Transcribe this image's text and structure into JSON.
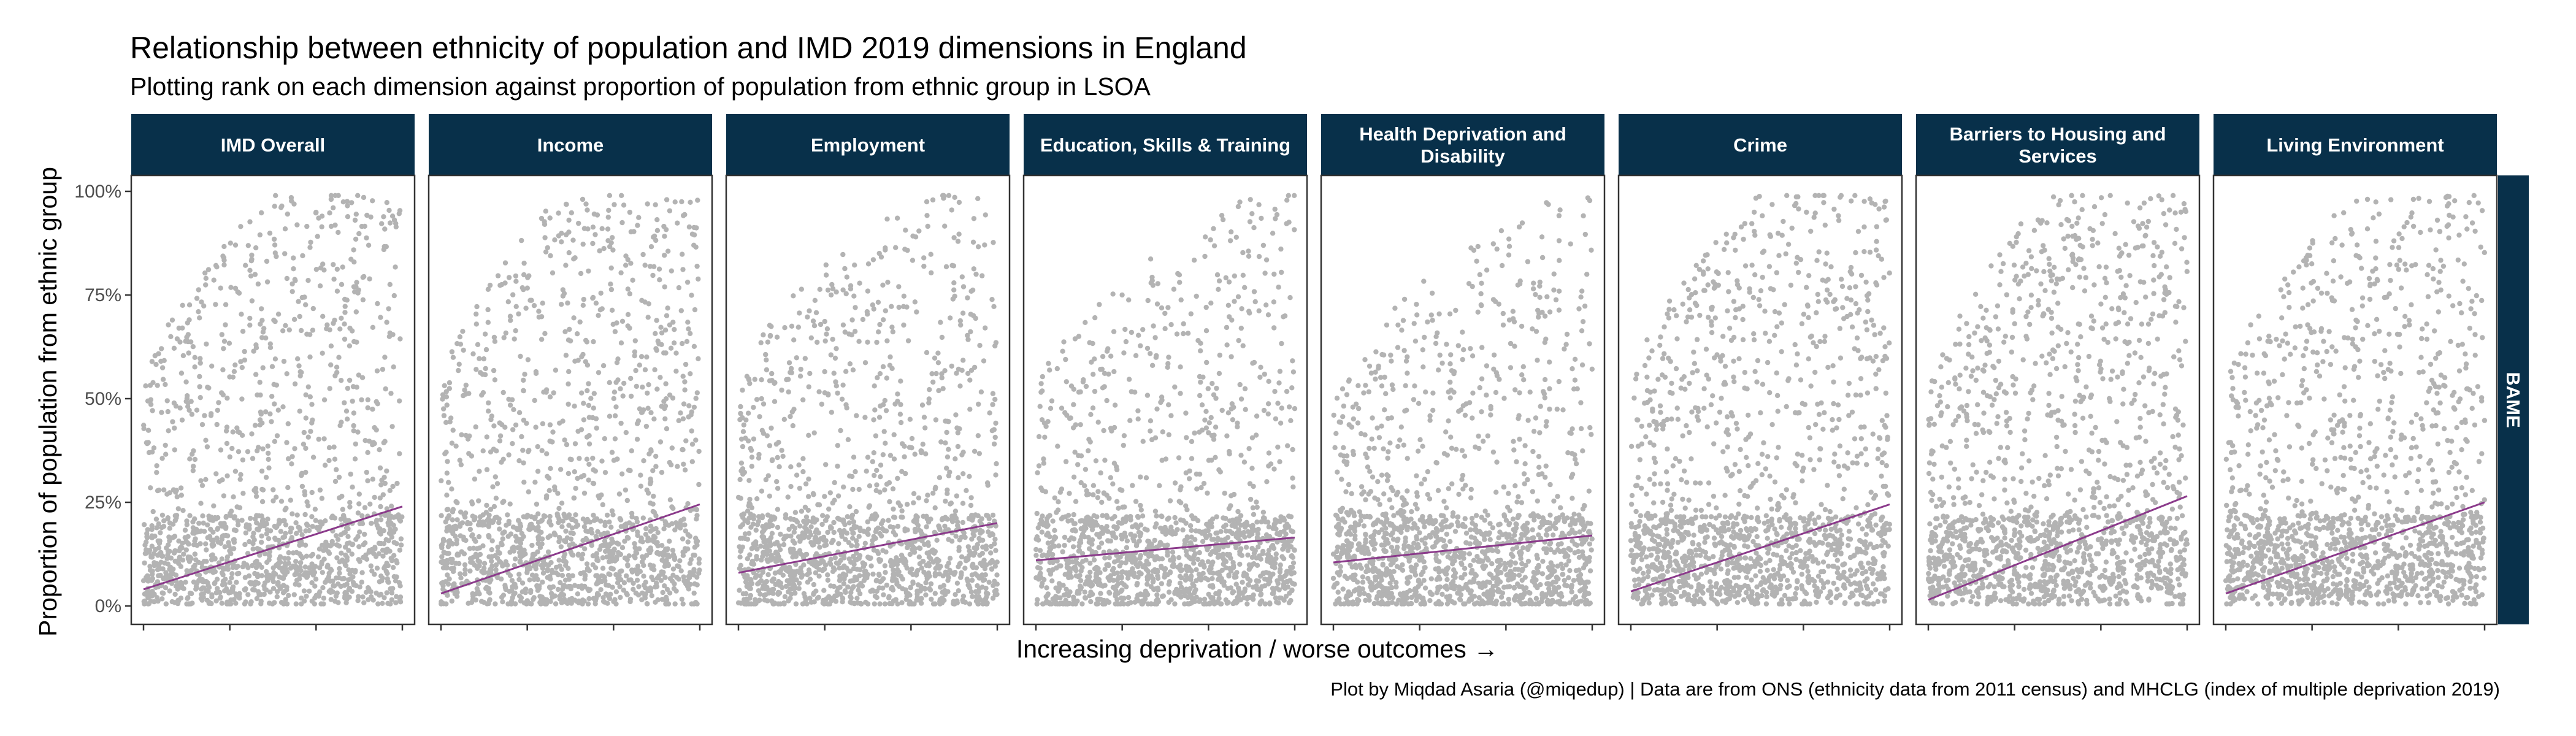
{
  "chart_data": {
    "type": "scatter",
    "title": "Relationship between ethnicity of population and IMD 2019 dimensions in England",
    "subtitle": "Plotting rank on each dimension against proportion of population from ethnic group in LSOA",
    "xlabel": "Increasing deprivation / worse outcomes →",
    "ylabel": "Proportion of population from ethnic group",
    "caption": "Plot by Miqdad Asaria (@miqedup) | Data are from ONS (ethnicity data from 2011 census) and MHCLG (index of multiple deprivation 2019)",
    "row_facet": "BAME",
    "ylim": [
      0,
      1
    ],
    "y_ticks": [
      {
        "value": 0,
        "label": "0%"
      },
      {
        "value": 0.25,
        "label": "25%"
      },
      {
        "value": 0.5,
        "label": "50%"
      },
      {
        "value": 0.75,
        "label": "75%"
      },
      {
        "value": 1,
        "label": "100%"
      }
    ],
    "xlim": [
      0,
      1
    ],
    "x_tick_labels_shown": false,
    "grid": false,
    "point_color": "#b3b3b3",
    "trend_color": "#8b3a8b",
    "strip_color": "#08304a",
    "panels": [
      {
        "label": "IMD Overall",
        "trend": {
          "start": 0.04,
          "end": 0.24
        },
        "skew": 1.0
      },
      {
        "label": "Income",
        "trend": {
          "start": 0.03,
          "end": 0.245
        },
        "skew": 1.1
      },
      {
        "label": "Employment",
        "trend": {
          "start": 0.08,
          "end": 0.2
        },
        "skew": 0.6
      },
      {
        "label": "Education, Skills & Training",
        "trend": {
          "start": 0.11,
          "end": 0.165
        },
        "skew": 0.35
      },
      {
        "label": "Health Deprivation and\nDisability",
        "trend": {
          "start": 0.105,
          "end": 0.17
        },
        "skew": 0.3
      },
      {
        "label": "Crime",
        "trend": {
          "start": 0.035,
          "end": 0.245
        },
        "skew": 1.0
      },
      {
        "label": "Barriers to Housing and\nServices",
        "trend": {
          "start": 0.015,
          "end": 0.265
        },
        "skew": 1.2
      },
      {
        "label": "Living Environment",
        "trend": {
          "start": 0.03,
          "end": 0.25
        },
        "skew": 1.0
      }
    ]
  }
}
